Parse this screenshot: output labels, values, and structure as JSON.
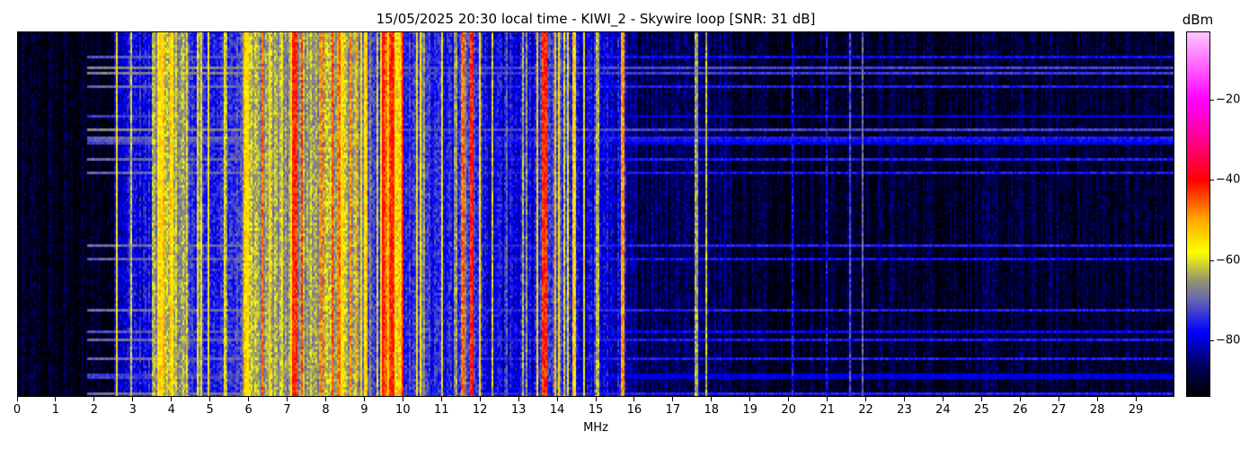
{
  "chart_data": {
    "type": "heatmap",
    "title": "15/05/2025 20:30 local time - KIWI_2 - Skywire loop [SNR: 31 dB]",
    "xlabel": "MHz",
    "xlim": [
      0,
      30
    ],
    "x_ticks": [
      0,
      1,
      2,
      3,
      4,
      5,
      6,
      7,
      8,
      9,
      10,
      11,
      12,
      13,
      14,
      15,
      16,
      17,
      18,
      19,
      20,
      21,
      22,
      23,
      24,
      25,
      26,
      27,
      28,
      29
    ],
    "colorbar": {
      "label": "dBm",
      "range": [
        -94,
        -3
      ],
      "ticks": [
        -20,
        -40,
        -60,
        -80
      ],
      "colormap": [
        [
          -94,
          "#000000"
        ],
        [
          -86,
          "#000060"
        ],
        [
          -78,
          "#0000ff"
        ],
        [
          -70,
          "#6464b4"
        ],
        [
          -65,
          "#96966e"
        ],
        [
          -58,
          "#ffff00"
        ],
        [
          -50,
          "#ffaa00"
        ],
        [
          -40,
          "#ff0000"
        ],
        [
          -30,
          "#ff0090"
        ],
        [
          -20,
          "#ff00ff"
        ],
        [
          -3,
          "#ffc8ff"
        ]
      ]
    },
    "noise_floor_dbm": [
      [
        0,
        2.5,
        -92
      ],
      [
        2.5,
        3.5,
        -78
      ],
      [
        3.5,
        4.4,
        -64
      ],
      [
        4.4,
        5.8,
        -75
      ],
      [
        5.8,
        9.0,
        -65
      ],
      [
        9.0,
        9.4,
        -74
      ],
      [
        9.4,
        10.0,
        -56
      ],
      [
        10.0,
        12.1,
        -76
      ],
      [
        12.1,
        13.5,
        -79
      ],
      [
        13.5,
        14.5,
        -74
      ],
      [
        14.5,
        15.8,
        -80
      ],
      [
        15.8,
        18.5,
        -86
      ],
      [
        18.5,
        30.0,
        -90
      ]
    ],
    "signals": [
      {
        "freq_mhz": 2.58,
        "bw_mhz": 0.05,
        "dbm": -57
      },
      {
        "freq_mhz": 3.7,
        "bw_mhz": 0.15,
        "dbm": -55
      },
      {
        "freq_mhz": 4.0,
        "bw_mhz": 0.1,
        "dbm": -57
      },
      {
        "freq_mhz": 5.95,
        "bw_mhz": 0.1,
        "dbm": -55
      },
      {
        "freq_mhz": 7.2,
        "bw_mhz": 0.15,
        "dbm": -42
      },
      {
        "freq_mhz": 8.45,
        "bw_mhz": 0.08,
        "dbm": -55
      },
      {
        "freq_mhz": 9.5,
        "bw_mhz": 0.08,
        "dbm": -45
      },
      {
        "freq_mhz": 9.7,
        "bw_mhz": 0.12,
        "dbm": -42
      },
      {
        "freq_mhz": 11.55,
        "bw_mhz": 0.05,
        "dbm": -45
      },
      {
        "freq_mhz": 11.8,
        "bw_mhz": 0.08,
        "dbm": -42
      },
      {
        "freq_mhz": 12.0,
        "bw_mhz": 0.05,
        "dbm": -55
      },
      {
        "freq_mhz": 13.65,
        "bw_mhz": 0.12,
        "dbm": -42
      },
      {
        "freq_mhz": 15.05,
        "bw_mhz": 0.05,
        "dbm": -62
      },
      {
        "freq_mhz": 15.7,
        "bw_mhz": 0.04,
        "dbm": -50
      },
      {
        "freq_mhz": 17.6,
        "bw_mhz": 0.06,
        "dbm": -65
      },
      {
        "freq_mhz": 17.85,
        "bw_mhz": 0.04,
        "dbm": -60
      },
      {
        "freq_mhz": 20.1,
        "bw_mhz": 0.02,
        "dbm": -78
      },
      {
        "freq_mhz": 21.0,
        "bw_mhz": 0.02,
        "dbm": -78
      },
      {
        "freq_mhz": 21.6,
        "bw_mhz": 0.03,
        "dbm": -72
      },
      {
        "freq_mhz": 21.9,
        "bw_mhz": 0.02,
        "dbm": -70
      }
    ]
  }
}
